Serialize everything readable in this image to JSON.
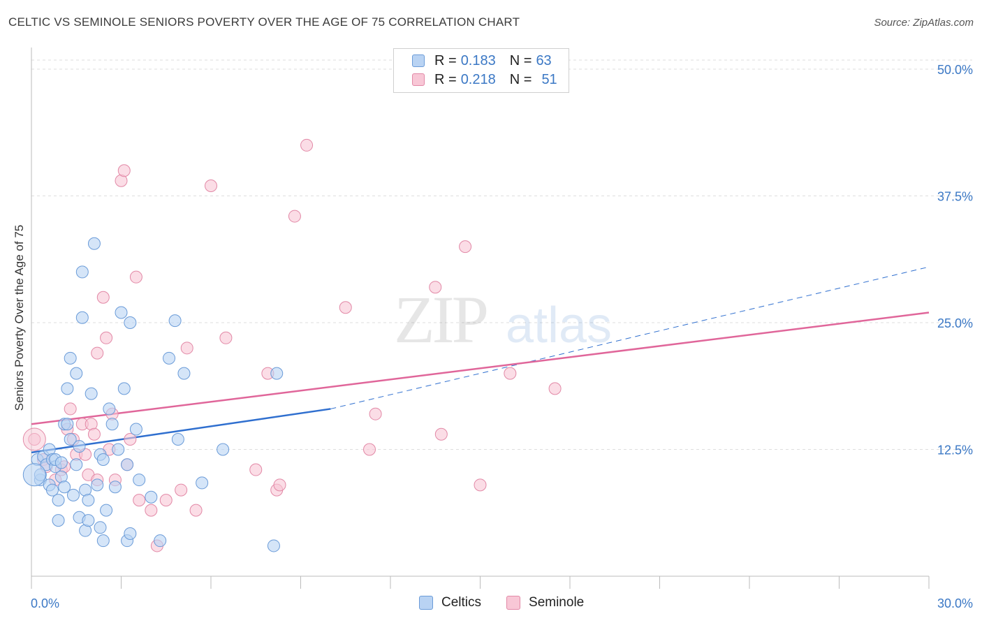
{
  "title": "CELTIC VS SEMINOLE SENIORS POVERTY OVER THE AGE OF 75 CORRELATION CHART",
  "source": "Source: ZipAtlas.com",
  "watermark": {
    "zip": "ZIP",
    "atlas": "atlas"
  },
  "legend": {
    "celtic": {
      "r_label": "R =",
      "r_value": "0.183",
      "n_label": "N =",
      "n_value": "63"
    },
    "seminole": {
      "r_label": "R =",
      "r_value": "0.218",
      "n_label": "N =",
      "n_value": "51"
    }
  },
  "chart_data": {
    "type": "scatter",
    "title": "CELTIC VS SEMINOLE SENIORS POVERTY OVER THE AGE OF 75 CORRELATION CHART",
    "xlabel": "",
    "ylabel": "Seniors Poverty Over the Age of 75",
    "xlim": [
      0,
      30
    ],
    "ylim": [
      0,
      52
    ],
    "x_tick_labels": [
      "0.0%",
      "30.0%"
    ],
    "y_ticks": [
      12.5,
      25.0,
      37.5,
      50.0
    ],
    "y_tick_labels": [
      "12.5%",
      "25.0%",
      "37.5%",
      "50.0%"
    ],
    "grid": true,
    "legend_position": "top-center",
    "colors": {
      "celtic": "#6a9bd8",
      "celtic_fill": "#b9d3f3",
      "seminole": "#e288a6",
      "seminole_fill": "#f8c7d6",
      "celtic_line": "#2f6fcf",
      "seminole_line": "#e0669a"
    },
    "series": [
      {
        "name": "Celtics",
        "x": [
          0.2,
          0.3,
          0.3,
          0.4,
          0.5,
          0.6,
          0.6,
          0.7,
          0.7,
          0.8,
          0.8,
          0.9,
          0.9,
          1.0,
          1.0,
          1.1,
          1.1,
          1.2,
          1.2,
          1.3,
          1.3,
          1.4,
          1.5,
          1.5,
          1.6,
          1.6,
          1.7,
          1.7,
          1.8,
          1.8,
          1.9,
          1.9,
          2.0,
          2.1,
          2.2,
          2.3,
          2.3,
          2.4,
          2.4,
          2.5,
          2.6,
          2.7,
          2.8,
          2.9,
          3.0,
          3.1,
          3.2,
          3.2,
          3.3,
          3.3,
          3.5,
          3.6,
          4.0,
          4.3,
          4.6,
          4.8,
          4.9,
          5.1,
          5.7,
          6.4,
          8.1,
          8.2,
          0.1
        ],
        "y": [
          11.5,
          9.5,
          10.0,
          11.8,
          11.0,
          9.0,
          12.5,
          11.5,
          8.5,
          10.8,
          11.5,
          7.5,
          5.5,
          9.8,
          11.2,
          8.8,
          15.0,
          18.5,
          15.0,
          21.5,
          13.5,
          8.0,
          20.0,
          11.0,
          12.8,
          5.8,
          25.5,
          30.0,
          8.5,
          4.5,
          7.5,
          5.5,
          18.0,
          32.8,
          9.0,
          12.0,
          4.8,
          3.5,
          11.5,
          6.5,
          16.5,
          15.0,
          8.8,
          12.5,
          26.0,
          18.5,
          11.0,
          3.5,
          4.2,
          25.0,
          14.5,
          9.5,
          7.8,
          3.5,
          21.5,
          25.2,
          13.5,
          20.0,
          9.2,
          12.5,
          3.0,
          20.0,
          10.0
        ]
      },
      {
        "name": "Seminole",
        "x": [
          0.1,
          0.4,
          0.5,
          0.8,
          1.0,
          1.1,
          1.2,
          1.3,
          1.4,
          1.5,
          1.7,
          1.8,
          1.9,
          2.0,
          2.1,
          2.2,
          2.2,
          2.4,
          2.5,
          2.6,
          2.7,
          2.8,
          3.0,
          3.1,
          3.2,
          3.3,
          3.5,
          3.6,
          4.0,
          4.2,
          4.5,
          5.0,
          5.2,
          5.5,
          6.0,
          6.5,
          7.5,
          7.9,
          8.2,
          8.3,
          8.8,
          9.2,
          10.5,
          11.3,
          11.5,
          13.5,
          13.7,
          14.5,
          15.0,
          16.0,
          17.5
        ],
        "y": [
          13.5,
          11.5,
          10.8,
          9.5,
          10.5,
          10.8,
          14.5,
          16.5,
          13.5,
          12.0,
          15.0,
          12.0,
          10.0,
          15.0,
          14.0,
          22.0,
          9.5,
          27.5,
          23.5,
          12.5,
          16.0,
          9.5,
          39.0,
          40.0,
          11.0,
          13.5,
          29.5,
          7.5,
          6.5,
          3.0,
          7.5,
          8.5,
          22.5,
          6.5,
          38.5,
          23.5,
          10.5,
          20.0,
          8.5,
          9.0,
          35.5,
          42.5,
          26.5,
          12.5,
          16.0,
          28.5,
          14.0,
          32.5,
          9.0,
          20.0,
          18.5
        ]
      }
    ],
    "trend_lines": [
      {
        "name": "Celtics",
        "x0": 0,
        "y0": 12.2,
        "x1": 10.0,
        "y1": 16.5,
        "dashed_to_x": 30,
        "dashed_to_y": 30.5
      },
      {
        "name": "Seminole",
        "x0": 0,
        "y0": 15.0,
        "x1": 30,
        "y1": 26.0
      }
    ]
  }
}
